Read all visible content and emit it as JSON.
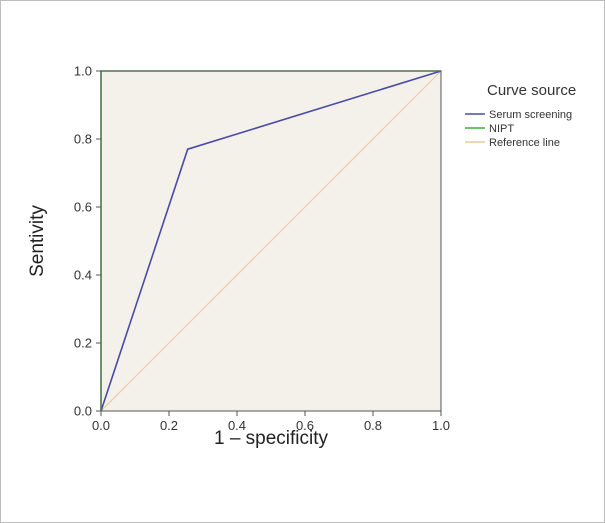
{
  "chart_data": {
    "type": "line",
    "xlabel": "1 – specificity",
    "ylabel": "Sentivity",
    "xlim": [
      0,
      1
    ],
    "ylim": [
      0,
      1
    ],
    "x_ticks": [
      "0.0",
      "0.2",
      "0.4",
      "0.6",
      "0.8",
      "1.0"
    ],
    "y_ticks": [
      "0.0",
      "0.2",
      "0.4",
      "0.6",
      "0.8",
      "1.0"
    ],
    "grid": false,
    "legend": {
      "title": "Curve source",
      "placement": "right"
    },
    "series": [
      {
        "name": "Serum screening",
        "color": "#4a4aa8",
        "points": [
          [
            0.0,
            0.0
          ],
          [
            0.255,
            0.77
          ],
          [
            1.0,
            1.0
          ]
        ]
      },
      {
        "name": "NIPT",
        "color": "#3fae3f",
        "points": [
          [
            0.0,
            0.0
          ],
          [
            0.0,
            1.0
          ],
          [
            1.0,
            1.0
          ]
        ]
      },
      {
        "name": "Reference line",
        "color": "#e8c9a0",
        "points": [
          [
            0.0,
            0.0
          ],
          [
            1.0,
            1.0
          ]
        ]
      }
    ],
    "plot_background": "#f4f1ea"
  }
}
